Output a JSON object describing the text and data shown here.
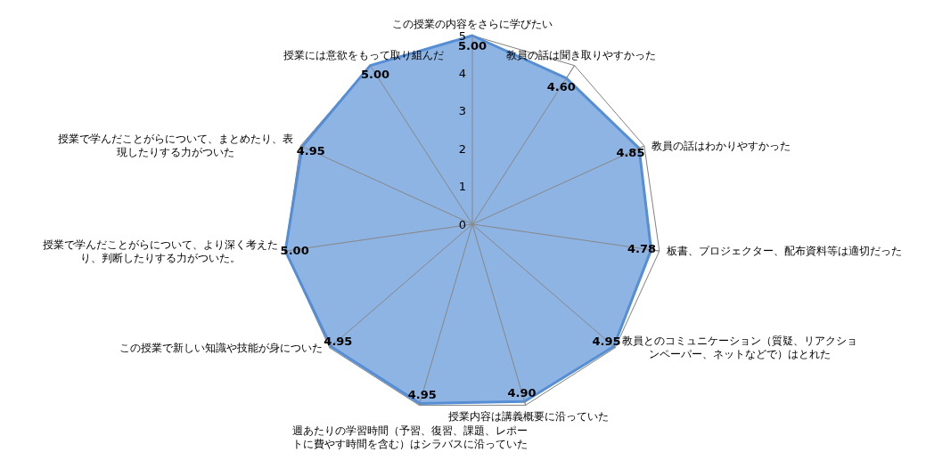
{
  "chart_data": {
    "type": "radar",
    "categories": [
      "この授業の内容をさらに学びたい",
      "教員の話は聞き取りやすかった",
      "教員の話はわかりやすかった",
      "板書、プロジェクター、配布資料等は適切だった",
      "教員とのコミュニケーション（質疑、リアクションペーパー、ネットなどで）はとれた",
      "授業内容は講義概要に沿っていた",
      "週あたりの学習時間（予習、復習、課題、レポートに費やす時間を含む）はシラバスに沿っていた",
      "この授業で新しい知識や技能が身についた",
      "授業で学んだことがらについて、より深く考えたり、判断したりする力がついた。",
      "授業で学んだことがらについて、まとめたり、表現したりする力がついた",
      "授業には意欲をもって取り組んだ"
    ],
    "series": [
      {
        "color": "#558ed5",
        "values": [
          5.0,
          4.6,
          4.85,
          4.78,
          4.95,
          4.9,
          4.95,
          4.95,
          5.0,
          4.95,
          5.0
        ],
        "value_labels": [
          "5.00",
          "4.60",
          "4.85",
          "4.78",
          "4.95",
          "4.90",
          "4.95",
          "4.95",
          "5.00",
          "4.95",
          "5.00"
        ]
      }
    ],
    "ylim": [
      0,
      5
    ],
    "yticks": [
      0,
      1,
      2,
      3,
      4,
      5
    ],
    "data_labels": true
  }
}
